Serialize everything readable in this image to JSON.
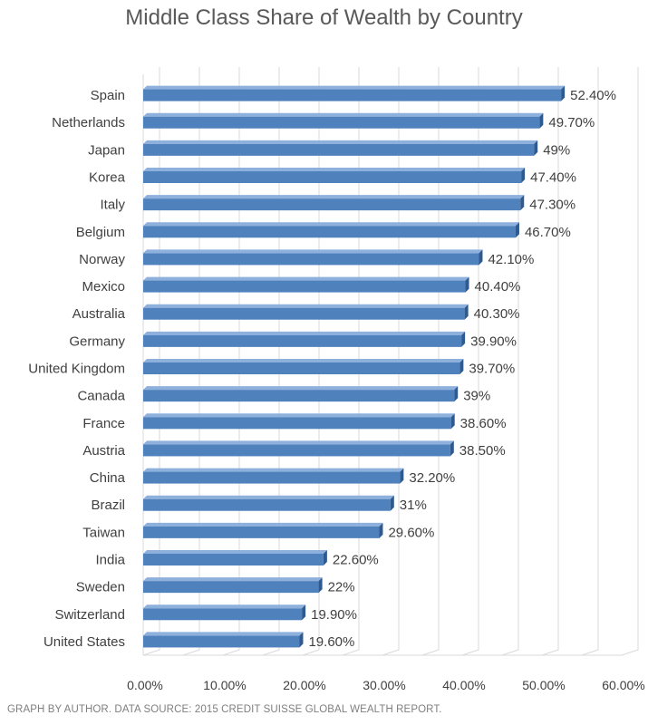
{
  "colors": {
    "bar_front": "#4f81bd",
    "bar_top": "#8eb0dd",
    "bar_side": "#2f5a8f",
    "grid": "#d9d9d9",
    "text": "#404040"
  },
  "chart_data": {
    "type": "bar",
    "orientation": "horizontal",
    "title": "Middle Class Share of Wealth by Country",
    "xlabel": "",
    "ylabel": "",
    "xlim": [
      0,
      60
    ],
    "x_ticks": [
      "0.00%",
      "10.00%",
      "20.00%",
      "30.00%",
      "40.00%",
      "50.00%",
      "60.00%"
    ],
    "grid": true,
    "categories": [
      "Spain",
      "Netherlands",
      "Japan",
      "Korea",
      "Italy",
      "Belgium",
      "Norway",
      "Mexico",
      "Australia",
      "Germany",
      "United Kingdom",
      "Canada",
      "France",
      "Austria",
      "China",
      "Brazil",
      "Taiwan",
      "India",
      "Sweden",
      "Switzerland",
      "United States"
    ],
    "values": [
      52.4,
      49.7,
      49,
      47.4,
      47.3,
      46.7,
      42.1,
      40.4,
      40.3,
      39.9,
      39.7,
      39,
      38.6,
      38.5,
      32.2,
      31,
      29.6,
      22.6,
      22,
      19.9,
      19.6
    ],
    "data_labels": [
      "52.40%",
      "49.70%",
      "49%",
      "47.40%",
      "47.30%",
      "46.70%",
      "42.10%",
      "40.40%",
      "40.30%",
      "39.90%",
      "39.70%",
      "39%",
      "38.60%",
      "38.50%",
      "32.20%",
      "31%",
      "29.60%",
      "22.60%",
      "22%",
      "19.90%",
      "19.60%"
    ]
  },
  "footer": {
    "source": "GRAPH BY AUTHOR. DATA SOURCE: 2015 CREDIT SUISSE GLOBAL WEALTH REPORT."
  }
}
